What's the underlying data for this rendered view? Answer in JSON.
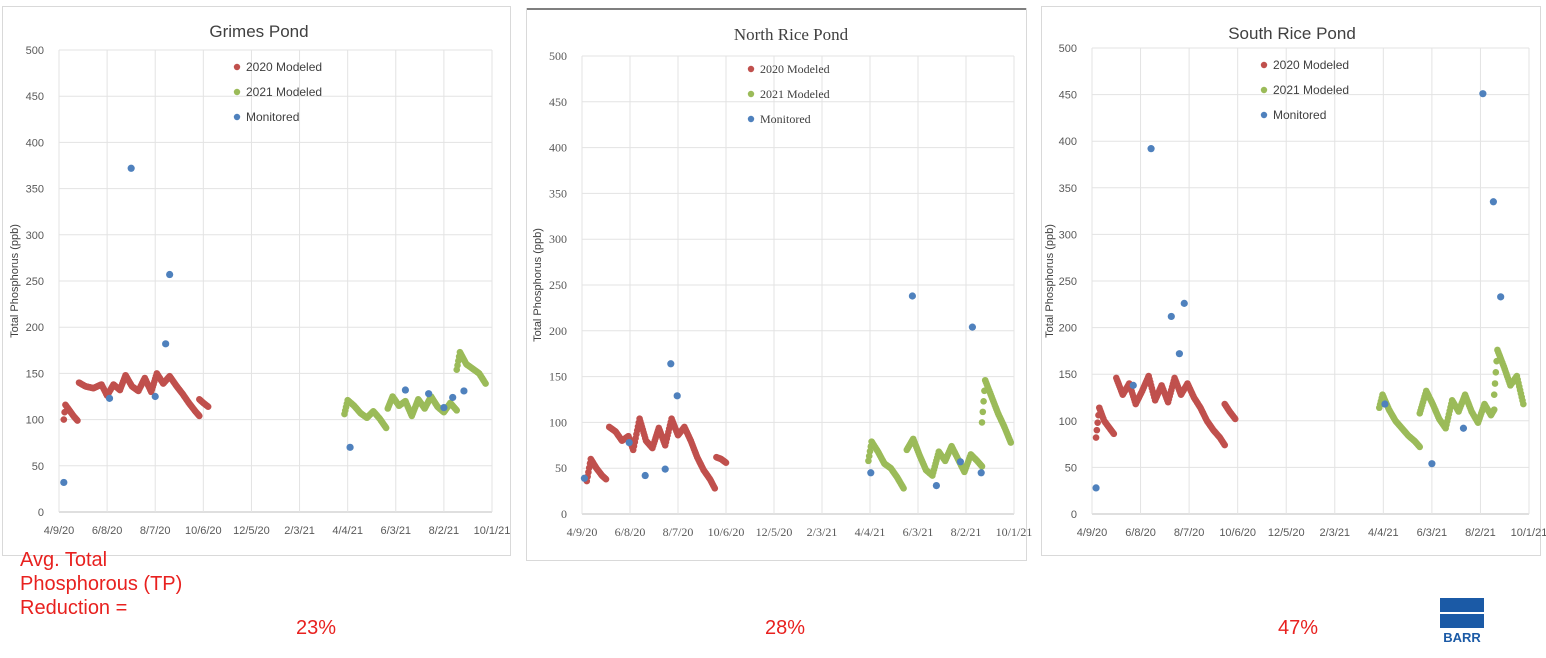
{
  "summary": {
    "label_lines": [
      "Avg. Total",
      "Phosphorous (TP)",
      "Reduction ="
    ],
    "reductions": [
      "23%",
      "28%",
      "47%"
    ]
  },
  "logo": {
    "text": "BARR",
    "color": "#1b5aa6"
  },
  "colors": {
    "modeled_2020": "#c0504d",
    "modeled_2021": "#9bbb59",
    "monitored": "#4f81bd",
    "accent_text": "#e8211f"
  },
  "chart_data": [
    {
      "type": "scatter",
      "title": "Grimes Pond",
      "ylabel": "Total Phosphorus (ppb)",
      "xlabel": "",
      "ylim": [
        0,
        500
      ],
      "yticks": [
        0,
        50,
        100,
        150,
        200,
        250,
        300,
        350,
        400,
        450,
        500
      ],
      "xticks": [
        "4/9/20",
        "6/8/20",
        "8/7/20",
        "10/6/20",
        "12/5/20",
        "2/3/21",
        "4/4/21",
        "6/3/21",
        "8/2/21",
        "10/1/21"
      ],
      "xlim": [
        "2020-04-09",
        "2021-10-01"
      ],
      "grid": true,
      "legend_position": "top",
      "series": [
        {
          "name": "2020 Modeled",
          "segments": [
            [
              [
                "2020-04-15",
                100
              ],
              [
                "2020-04-17",
                116
              ],
              [
                "2020-04-22",
                110
              ],
              [
                "2020-04-27",
                104
              ],
              [
                "2020-05-02",
                99
              ]
            ],
            [
              [
                "2020-05-04",
                140
              ],
              [
                "2020-05-12",
                136
              ],
              [
                "2020-05-22",
                134
              ],
              [
                "2020-06-01",
                138
              ],
              [
                "2020-06-08",
                126
              ],
              [
                "2020-06-16",
                138
              ],
              [
                "2020-06-24",
                132
              ],
              [
                "2020-07-01",
                148
              ],
              [
                "2020-07-09",
                136
              ],
              [
                "2020-07-17",
                131
              ],
              [
                "2020-07-25",
                145
              ],
              [
                "2020-08-02",
                130
              ],
              [
                "2020-08-09",
                150
              ],
              [
                "2020-08-17",
                139
              ],
              [
                "2020-08-25",
                147
              ],
              [
                "2020-09-02",
                137
              ],
              [
                "2020-09-10",
                128
              ],
              [
                "2020-09-18",
                118
              ],
              [
                "2020-09-26",
                109
              ],
              [
                "2020-10-01",
                104
              ]
            ],
            [
              [
                "2020-10-01",
                122
              ],
              [
                "2020-10-06",
                118
              ],
              [
                "2020-10-12",
                114
              ]
            ]
          ]
        },
        {
          "name": "2021 Modeled",
          "segments": [
            [
              [
                "2021-03-31",
                106
              ],
              [
                "2021-04-04",
                121
              ],
              [
                "2021-04-12",
                115
              ],
              [
                "2021-04-20",
                107
              ],
              [
                "2021-04-28",
                102
              ],
              [
                "2021-05-06",
                109
              ],
              [
                "2021-05-14",
                101
              ],
              [
                "2021-05-22",
                91
              ]
            ],
            [
              [
                "2021-05-24",
                112
              ],
              [
                "2021-05-30",
                125
              ],
              [
                "2021-06-07",
                115
              ],
              [
                "2021-06-15",
                120
              ],
              [
                "2021-06-23",
                104
              ],
              [
                "2021-07-01",
                122
              ],
              [
                "2021-07-09",
                112
              ],
              [
                "2021-07-17",
                125
              ],
              [
                "2021-07-25",
                114
              ],
              [
                "2021-08-02",
                108
              ],
              [
                "2021-08-10",
                118
              ],
              [
                "2021-08-18",
                110
              ]
            ],
            [
              [
                "2021-08-18",
                154
              ],
              [
                "2021-08-22",
                173
              ],
              [
                "2021-08-30",
                160
              ],
              [
                "2021-09-07",
                155
              ],
              [
                "2021-09-15",
                150
              ],
              [
                "2021-09-23",
                139
              ]
            ]
          ]
        },
        {
          "name": "Monitored",
          "points": [
            [
              "2020-04-15",
              32
            ],
            [
              "2020-06-11",
              123
            ],
            [
              "2020-07-08",
              372
            ],
            [
              "2020-08-07",
              125
            ],
            [
              "2020-08-20",
              182
            ],
            [
              "2020-08-25",
              257
            ],
            [
              "2021-04-07",
              70
            ],
            [
              "2021-06-15",
              132
            ],
            [
              "2021-07-14",
              128
            ],
            [
              "2021-08-02",
              113
            ],
            [
              "2021-08-13",
              124
            ],
            [
              "2021-08-27",
              131
            ]
          ]
        }
      ]
    },
    {
      "type": "scatter",
      "title": "North Rice Pond",
      "ylabel": "Total Phosphorus (ppb)",
      "xlabel": "",
      "ylim": [
        0,
        500
      ],
      "yticks": [
        0,
        50,
        100,
        150,
        200,
        250,
        300,
        350,
        400,
        450,
        500
      ],
      "xticks": [
        "4/9/20",
        "6/8/20",
        "8/7/20",
        "10/6/20",
        "12/5/20",
        "2/3/21",
        "4/4/21",
        "6/3/21",
        "8/2/21",
        "10/1/21"
      ],
      "xlim": [
        "2020-04-09",
        "2021-10-01"
      ],
      "grid": true,
      "legend_position": "top",
      "series": [
        {
          "name": "2020 Modeled",
          "segments": [
            [
              [
                "2020-04-15",
                36
              ],
              [
                "2020-04-20",
                60
              ],
              [
                "2020-04-27",
                50
              ],
              [
                "2020-05-04",
                42
              ],
              [
                "2020-05-09",
                38
              ]
            ],
            [
              [
                "2020-05-13",
                95
              ],
              [
                "2020-05-21",
                90
              ],
              [
                "2020-05-29",
                80
              ],
              [
                "2020-06-06",
                85
              ],
              [
                "2020-06-12",
                70
              ],
              [
                "2020-06-20",
                104
              ],
              [
                "2020-06-28",
                80
              ],
              [
                "2020-07-06",
                72
              ],
              [
                "2020-07-14",
                94
              ],
              [
                "2020-07-22",
                75
              ],
              [
                "2020-07-30",
                104
              ],
              [
                "2020-08-07",
                86
              ],
              [
                "2020-08-15",
                95
              ],
              [
                "2020-08-23",
                80
              ],
              [
                "2020-08-31",
                62
              ],
              [
                "2020-09-08",
                48
              ],
              [
                "2020-09-16",
                38
              ],
              [
                "2020-09-22",
                28
              ]
            ],
            [
              [
                "2020-09-24",
                62
              ],
              [
                "2020-09-30",
                60
              ],
              [
                "2020-10-06",
                56
              ]
            ]
          ]
        },
        {
          "name": "2021 Modeled",
          "segments": [
            [
              [
                "2021-04-02",
                58
              ],
              [
                "2021-04-06",
                79
              ],
              [
                "2021-04-14",
                68
              ],
              [
                "2021-04-22",
                55
              ],
              [
                "2021-04-30",
                50
              ],
              [
                "2021-05-08",
                40
              ],
              [
                "2021-05-16",
                28
              ]
            ],
            [
              [
                "2021-05-20",
                70
              ],
              [
                "2021-05-28",
                82
              ],
              [
                "2021-06-05",
                64
              ],
              [
                "2021-06-13",
                48
              ],
              [
                "2021-06-21",
                42
              ],
              [
                "2021-06-29",
                68
              ],
              [
                "2021-07-07",
                58
              ],
              [
                "2021-07-15",
                74
              ],
              [
                "2021-07-23",
                60
              ],
              [
                "2021-07-31",
                46
              ],
              [
                "2021-08-08",
                65
              ],
              [
                "2021-08-16",
                58
              ],
              [
                "2021-08-22",
                52
              ]
            ],
            [
              [
                "2021-08-22",
                100
              ],
              [
                "2021-08-26",
                146
              ],
              [
                "2021-09-03",
                128
              ],
              [
                "2021-09-11",
                110
              ],
              [
                "2021-09-19",
                95
              ],
              [
                "2021-09-27",
                78
              ]
            ]
          ]
        },
        {
          "name": "Monitored",
          "points": [
            [
              "2020-04-12",
              39
            ],
            [
              "2020-06-07",
              78
            ],
            [
              "2020-06-27",
              42
            ],
            [
              "2020-07-22",
              49
            ],
            [
              "2020-07-29",
              164
            ],
            [
              "2020-08-06",
              129
            ],
            [
              "2021-04-05",
              45
            ],
            [
              "2021-05-27",
              238
            ],
            [
              "2021-06-26",
              31
            ],
            [
              "2021-07-26",
              57
            ],
            [
              "2021-08-10",
              204
            ],
            [
              "2021-08-21",
              45
            ]
          ]
        }
      ]
    },
    {
      "type": "scatter",
      "title": "South Rice Pond",
      "ylabel": "Total Phosphorus (ppb)",
      "xlabel": "",
      "ylim": [
        0,
        500
      ],
      "yticks": [
        0,
        50,
        100,
        150,
        200,
        250,
        300,
        350,
        400,
        450,
        500
      ],
      "xticks": [
        "4/9/20",
        "6/8/20",
        "8/7/20",
        "10/6/20",
        "12/5/20",
        "2/3/21",
        "4/4/21",
        "6/3/21",
        "8/2/21",
        "10/1/21"
      ],
      "xlim": [
        "2020-04-09",
        "2021-10-01"
      ],
      "grid": true,
      "legend_position": "top",
      "series": [
        {
          "name": "2020 Modeled",
          "segments": [
            [
              [
                "2020-04-14",
                82
              ],
              [
                "2020-04-18",
                114
              ],
              [
                "2020-04-24",
                100
              ],
              [
                "2020-04-30",
                93
              ],
              [
                "2020-05-06",
                86
              ]
            ],
            [
              [
                "2020-05-09",
                146
              ],
              [
                "2020-05-17",
                128
              ],
              [
                "2020-05-25",
                140
              ],
              [
                "2020-06-02",
                118
              ],
              [
                "2020-06-10",
                132
              ],
              [
                "2020-06-18",
                148
              ],
              [
                "2020-06-26",
                122
              ],
              [
                "2020-07-04",
                138
              ],
              [
                "2020-07-12",
                120
              ],
              [
                "2020-07-20",
                146
              ],
              [
                "2020-07-28",
                128
              ],
              [
                "2020-08-05",
                140
              ],
              [
                "2020-08-13",
                125
              ],
              [
                "2020-08-21",
                114
              ],
              [
                "2020-08-29",
                100
              ],
              [
                "2020-09-06",
                90
              ],
              [
                "2020-09-14",
                82
              ],
              [
                "2020-09-20",
                74
              ]
            ],
            [
              [
                "2020-09-20",
                118
              ],
              [
                "2020-09-26",
                110
              ],
              [
                "2020-10-03",
                102
              ]
            ]
          ]
        },
        {
          "name": "2021 Modeled",
          "segments": [
            [
              [
                "2021-03-30",
                114
              ],
              [
                "2021-04-03",
                128
              ],
              [
                "2021-04-11",
                112
              ],
              [
                "2021-04-19",
                100
              ],
              [
                "2021-04-27",
                92
              ],
              [
                "2021-05-05",
                84
              ],
              [
                "2021-05-13",
                78
              ],
              [
                "2021-05-19",
                72
              ]
            ],
            [
              [
                "2021-05-19",
                108
              ],
              [
                "2021-05-27",
                132
              ],
              [
                "2021-06-04",
                118
              ],
              [
                "2021-06-12",
                102
              ],
              [
                "2021-06-20",
                92
              ],
              [
                "2021-06-28",
                122
              ],
              [
                "2021-07-06",
                110
              ],
              [
                "2021-07-14",
                128
              ],
              [
                "2021-07-22",
                110
              ],
              [
                "2021-07-30",
                98
              ],
              [
                "2021-08-07",
                118
              ],
              [
                "2021-08-15",
                106
              ],
              [
                "2021-08-19",
                112
              ]
            ],
            [
              [
                "2021-08-19",
                128
              ],
              [
                "2021-08-23",
                176
              ],
              [
                "2021-08-31",
                158
              ],
              [
                "2021-09-08",
                138
              ],
              [
                "2021-09-16",
                148
              ],
              [
                "2021-09-24",
                118
              ]
            ]
          ]
        },
        {
          "name": "Monitored",
          "points": [
            [
              "2020-04-14",
              28
            ],
            [
              "2020-05-30",
              138
            ],
            [
              "2020-06-21",
              392
            ],
            [
              "2020-07-16",
              212
            ],
            [
              "2020-07-26",
              172
            ],
            [
              "2020-08-01",
              226
            ],
            [
              "2021-04-06",
              118
            ],
            [
              "2021-06-03",
              54
            ],
            [
              "2021-07-12",
              92
            ],
            [
              "2021-08-05",
              451
            ],
            [
              "2021-08-18",
              335
            ],
            [
              "2021-08-27",
              233
            ]
          ]
        }
      ]
    }
  ]
}
